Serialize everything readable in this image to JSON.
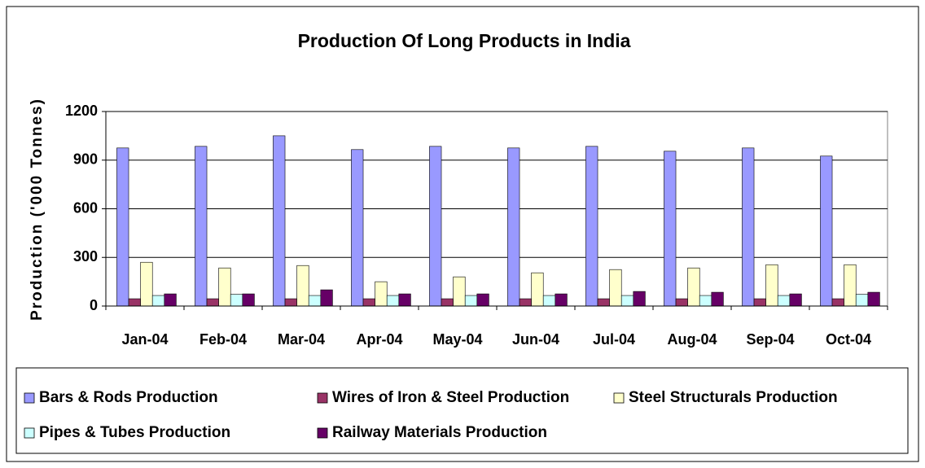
{
  "chart_data": {
    "type": "bar",
    "title": "Production Of Long Products in India",
    "y_label": "Production ('000 Tonnes)",
    "categories": [
      "Jan-04",
      "Feb-04",
      "Mar-04",
      "Apr-04",
      "May-04",
      "Jun-04",
      "Jul-04",
      "Aug-04",
      "Sep-04",
      "Oct-04"
    ],
    "series": [
      {
        "name": "Bars & Rods Production",
        "color": "#9999ff",
        "values": [
          975,
          985,
          1050,
          965,
          985,
          975,
          985,
          955,
          975,
          925
        ]
      },
      {
        "name": "Wires of Iron & Steel Production",
        "color": "#993366",
        "values": [
          45,
          45,
          45,
          45,
          45,
          45,
          45,
          45,
          45,
          45
        ]
      },
      {
        "name": "Steel Structurals Production",
        "color": "#ffffcc",
        "values": [
          270,
          235,
          250,
          150,
          180,
          205,
          225,
          235,
          255,
          255
        ]
      },
      {
        "name": "Pipes & Tubes Production",
        "color": "#ccffff",
        "values": [
          65,
          72,
          65,
          65,
          65,
          65,
          65,
          65,
          65,
          72
        ]
      },
      {
        "name": "Railway Materials Production",
        "color": "#660066",
        "values": [
          75,
          75,
          100,
          75,
          75,
          75,
          90,
          85,
          75,
          85
        ]
      }
    ],
    "ylim": [
      0,
      1200
    ],
    "yticks": [
      0,
      300,
      600,
      900,
      1200
    ],
    "grid": true
  }
}
